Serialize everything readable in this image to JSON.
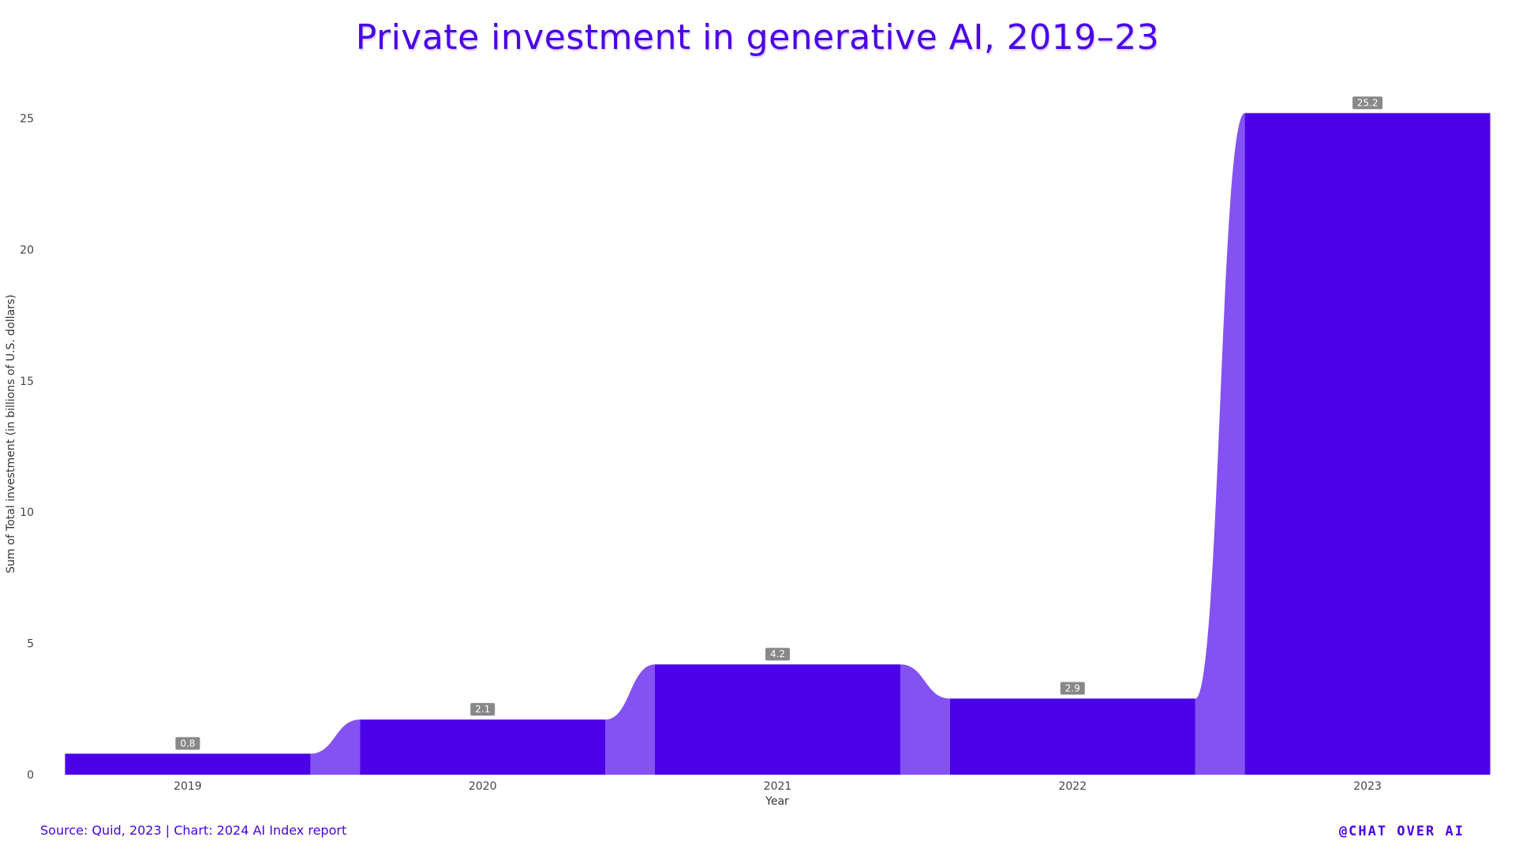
{
  "colors": {
    "bar": "#4b00e8",
    "connector": "#8452f2",
    "title": "#4a02e6",
    "label_bg": "#888888"
  },
  "source_text": "Source: Quid, 2023 | Chart: 2024 AI Index report",
  "brand": "@CHAT OVER AI",
  "chart_data": {
    "type": "bar",
    "title": "Private investment in generative AI, 2019–23",
    "xlabel": "Year",
    "ylabel": "Sum of Total investment (in billions of U.S. dollars)",
    "categories": [
      "2019",
      "2020",
      "2021",
      "2022",
      "2023"
    ],
    "values": [
      0.8,
      2.1,
      4.2,
      2.9,
      25.2
    ],
    "data_labels": [
      "0.8",
      "2.1",
      "4.2",
      "2.9",
      "25.2"
    ],
    "ylim": [
      0,
      27.2
    ],
    "yticks": [
      0,
      5,
      10,
      15,
      20,
      25
    ],
    "ytick_labels": [
      "0",
      "5",
      "10",
      "15",
      "20",
      "25"
    ],
    "grid": false,
    "legend": "none"
  }
}
